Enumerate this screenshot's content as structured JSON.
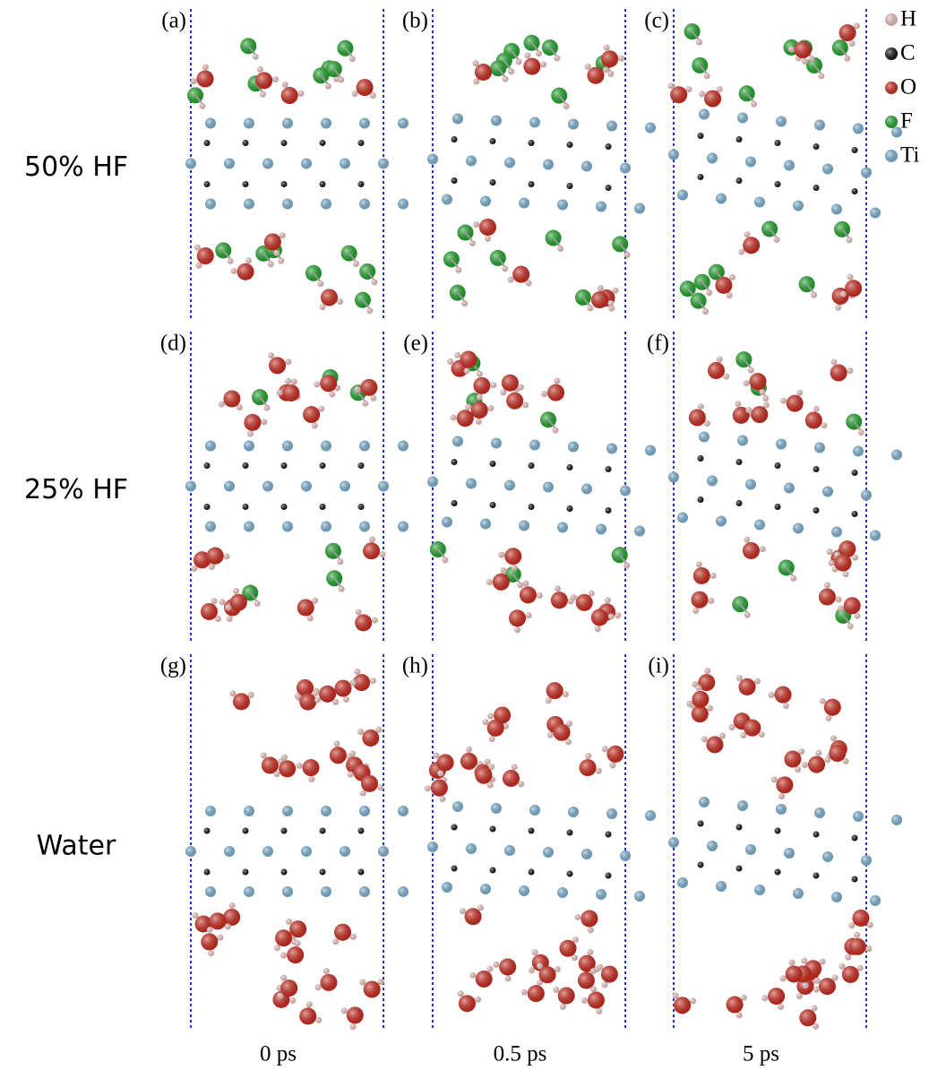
{
  "panels": [
    "(a)",
    "(b)",
    "(c)",
    "(d)",
    "(e)",
    "(f)",
    "(g)",
    "(h)",
    "(i)"
  ],
  "rows": [
    "50% HF",
    "25% HF",
    "Water"
  ],
  "columns": [
    "0 ps",
    "0.5 ps",
    "5 ps"
  ],
  "legend": [
    {
      "label": "H",
      "color": "#f2c9c6"
    },
    {
      "label": "C",
      "color": "#111111"
    },
    {
      "label": "O",
      "color": "#d0281b"
    },
    {
      "label": "F",
      "color": "#1fa82a"
    },
    {
      "label": "Ti",
      "color": "#7fb6d8"
    }
  ]
}
